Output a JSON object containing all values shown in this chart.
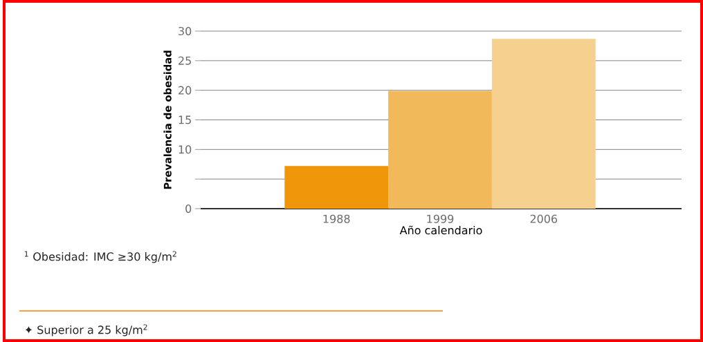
{
  "chart_data": {
    "type": "bar",
    "categories": [
      "1988",
      "1999",
      "2006"
    ],
    "values": [
      7.2,
      19.9,
      28.7
    ],
    "colors": [
      "#f0960a",
      "#f2b95a",
      "#f5d08f"
    ],
    "ylim": [
      0,
      30
    ],
    "yticks": [
      0,
      {
        "value": 5,
        "label": null
      },
      10,
      15,
      20,
      25,
      30
    ],
    "grid": "y",
    "xlabel": "Año calendario",
    "ylabel": "Prevalencia de obesidad",
    "annotations": [
      "$^{1}$ Obesidad: IMC ≥30 kg/m$^{2}$",
      "✦ Superior a 25 kg/m$^{2}$"
    ]
  }
}
